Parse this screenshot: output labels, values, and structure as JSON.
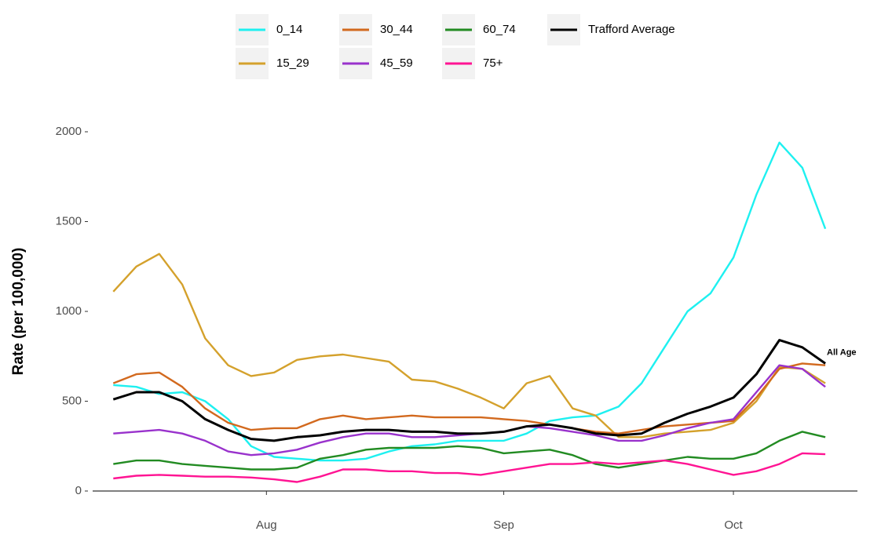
{
  "chart_data": {
    "type": "line",
    "y_label": "Rate (per 100,000)",
    "annotation": "All Age",
    "legend": "top",
    "x": [
      -20,
      -17,
      -14,
      -11,
      -8,
      -5,
      -2,
      1,
      4,
      7,
      10,
      13,
      16,
      19,
      22,
      25,
      28,
      31,
      34,
      37,
      40,
      43,
      46,
      49,
      52,
      55,
      58,
      61,
      64,
      67,
      70,
      73
    ],
    "xlim": [
      -22.7,
      77.2
    ],
    "xticks": [
      {
        "value": 0,
        "label": "Aug"
      },
      {
        "value": 31,
        "label": "Sep"
      },
      {
        "value": 61,
        "label": "Oct"
      }
    ],
    "ylim": [
      0,
      2000
    ],
    "yticks": [
      0,
      500,
      1000,
      1500,
      2000
    ],
    "series": [
      {
        "name": "0_14",
        "color": "#1ef0f0",
        "values": [
          590,
          580,
          540,
          550,
          500,
          400,
          250,
          190,
          180,
          170,
          170,
          180,
          220,
          250,
          260,
          280,
          280,
          280,
          320,
          390,
          410,
          420,
          470,
          600,
          800,
          1000,
          1100,
          1300,
          1650,
          1940,
          1800,
          1460
        ]
      },
      {
        "name": "15_29",
        "color": "#d4a12c",
        "values": [
          1110,
          1250,
          1320,
          1150,
          850,
          700,
          640,
          660,
          730,
          750,
          760,
          740,
          720,
          620,
          610,
          570,
          520,
          460,
          600,
          640,
          460,
          420,
          300,
          300,
          320,
          330,
          340,
          380,
          500,
          690,
          680,
          600
        ]
      },
      {
        "name": "30_44",
        "color": "#d2691e",
        "values": [
          600,
          650,
          660,
          580,
          460,
          380,
          340,
          350,
          350,
          400,
          420,
          400,
          410,
          420,
          410,
          410,
          410,
          400,
          390,
          370,
          350,
          330,
          320,
          340,
          360,
          370,
          380,
          390,
          520,
          680,
          710,
          700
        ]
      },
      {
        "name": "45_59",
        "color": "#9932cc",
        "values": [
          320,
          330,
          340,
          320,
          280,
          220,
          200,
          210,
          230,
          270,
          300,
          320,
          320,
          300,
          300,
          310,
          320,
          330,
          360,
          350,
          330,
          310,
          280,
          280,
          310,
          350,
          380,
          400,
          550,
          700,
          680,
          580
        ]
      },
      {
        "name": "60_74",
        "color": "#228b22",
        "values": [
          150,
          170,
          170,
          150,
          140,
          130,
          120,
          120,
          130,
          180,
          200,
          230,
          240,
          240,
          240,
          250,
          240,
          210,
          220,
          230,
          200,
          150,
          130,
          150,
          170,
          190,
          180,
          180,
          210,
          280,
          330,
          300
        ]
      },
      {
        "name": "75+",
        "color": "#ff1493",
        "values": [
          70,
          85,
          90,
          85,
          80,
          80,
          75,
          65,
          50,
          80,
          120,
          120,
          110,
          110,
          100,
          100,
          90,
          110,
          130,
          150,
          150,
          160,
          150,
          160,
          170,
          150,
          120,
          90,
          110,
          150,
          210,
          205
        ]
      },
      {
        "name": "Trafford Average",
        "color": "#000000",
        "values": [
          510,
          550,
          550,
          500,
          400,
          340,
          290,
          280,
          300,
          310,
          330,
          340,
          340,
          330,
          330,
          320,
          320,
          330,
          360,
          370,
          350,
          320,
          310,
          320,
          380,
          430,
          470,
          520,
          650,
          840,
          800,
          710
        ]
      }
    ]
  }
}
